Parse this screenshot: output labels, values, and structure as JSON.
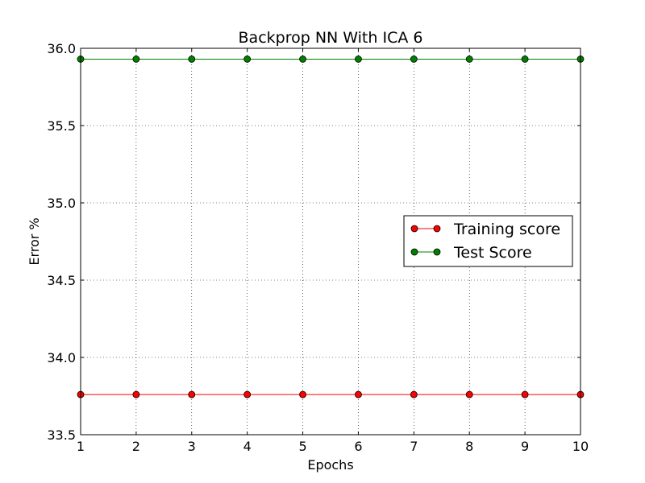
{
  "chart_data": {
    "type": "line",
    "title": "Backprop NN With ICA 6",
    "xlabel": "Epochs",
    "ylabel": "Error %",
    "xlim": [
      1,
      10
    ],
    "ylim": [
      33.5,
      36.0
    ],
    "xticks": [
      1,
      2,
      3,
      4,
      5,
      6,
      7,
      8,
      9,
      10
    ],
    "xtick_labels": [
      "1",
      "2",
      "3",
      "4",
      "5",
      "6",
      "7",
      "8",
      "9",
      "10"
    ],
    "yticks": [
      33.5,
      34.0,
      34.5,
      35.0,
      35.5,
      36.0
    ],
    "ytick_labels": [
      "33.5",
      "34.0",
      "34.5",
      "35.0",
      "35.5",
      "36.0"
    ],
    "grid": true,
    "legend_position": "center-right",
    "x": [
      1,
      2,
      3,
      4,
      5,
      6,
      7,
      8,
      9,
      10
    ],
    "series": [
      {
        "name": "Training score",
        "color": "#ff0000",
        "marker_color": "#ff0000",
        "values": [
          33.76,
          33.76,
          33.76,
          33.76,
          33.76,
          33.76,
          33.76,
          33.76,
          33.76,
          33.76
        ]
      },
      {
        "name": "Test Score",
        "color": "#008000",
        "marker_color": "#008000",
        "values": [
          35.93,
          35.93,
          35.93,
          35.93,
          35.93,
          35.93,
          35.93,
          35.93,
          35.93,
          35.93
        ]
      }
    ]
  }
}
